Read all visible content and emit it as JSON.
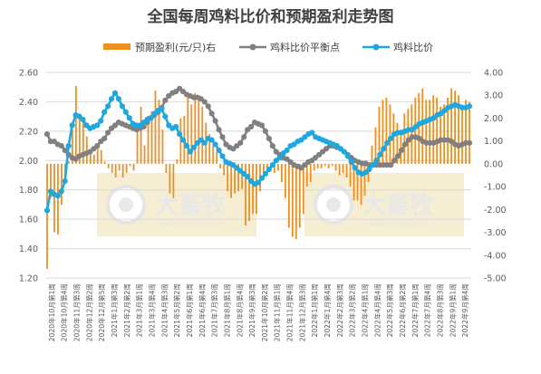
{
  "chart_data": {
    "type": "bar+line",
    "title": "全国每周鸡料比价和预期盈利走势图",
    "legend": {
      "placement": "top",
      "items": [
        "预期盈利(元/只)右",
        "鸡料比价平衡点",
        "鸡料比价"
      ]
    },
    "y_left": {
      "min": 1.2,
      "max": 2.6,
      "step": 0.2,
      "tick_labels": [
        "1.20",
        "1.40",
        "1.60",
        "1.80",
        "2.00",
        "2.20",
        "2.40",
        "2.60"
      ]
    },
    "y_right": {
      "min": -5,
      "max": 4,
      "step": 1,
      "tick_labels": [
        "-5.00",
        "-4.00",
        "-3.00",
        "-2.00",
        "-1.00",
        "0.00",
        "1.00",
        "2.00",
        "3.00",
        "4.00"
      ]
    },
    "x_tick_labels": [
      "2020年10月第1周",
      "2020年10月第4周",
      "2020年11月第3周",
      "2020年12月第2周",
      "2020年12月第5周",
      "2021年1月第3周",
      "2021年2月第2周",
      "2021年3月第1周",
      "2021年3月第4周",
      "2021年4月第3周",
      "2021年5月第2周",
      "2021年6月第1周",
      "2021年6月第4周",
      "2021年7月第3周",
      "2021年8月第1周",
      "2021年8月第4周",
      "2021年9月第3周",
      "2021年10月第2周",
      "2021年11月第1周",
      "2021年11月第4周",
      "2021年12月第3周",
      "2022年1月第1周",
      "2022年1月第4周",
      "2022年2月第3周",
      "2022年3月第2周",
      "2022年4月第1周",
      "2022年4月第4周",
      "2022年5月第3周",
      "2022年6月第2周",
      "2022年7月第1周",
      "2022年7月第4周",
      "2022年8月第3周",
      "2022年9月第1周",
      "2022年9月第4周"
    ],
    "series": [
      {
        "name": "预期盈利(元/只)右",
        "kind": "bar",
        "axis": "right",
        "color": "#ED8F21",
        "values": [
          -4.6,
          -1.5,
          -3.0,
          -3.1,
          -1.8,
          -0.8,
          0.1,
          1.5,
          3.4,
          2.2,
          2.0,
          1.2,
          0.5,
          0.4,
          0.9,
          0.6,
          0.1,
          -0.2,
          -0.4,
          -0.6,
          -0.3,
          -0.6,
          -0.4,
          -0.1,
          -0.3,
          1.5,
          2.5,
          0.8,
          2.1,
          2.3,
          3.2,
          2.8,
          1.5,
          -0.4,
          -1.3,
          -1.5,
          0.2,
          2.0,
          2.1,
          3.0,
          2.6,
          3.1,
          3.0,
          2.5,
          1.8,
          1.3,
          0.8,
          0.5,
          -0.2,
          -0.5,
          -1.2,
          -1.5,
          -1.3,
          -1.2,
          -1.1,
          -2.7,
          -2.5,
          -2.2,
          -2.2,
          -1.2,
          -0.6,
          -0.3,
          -0.2,
          -0.4,
          -0.3,
          -0.8,
          -1.5,
          -2.8,
          -3.2,
          -3.3,
          -2.8,
          -2.2,
          -1.0,
          -0.8,
          -0.3,
          -0.2,
          -0.2,
          -0.1,
          -0.2,
          -0.1,
          -0.3,
          -0.5,
          -0.4,
          -0.6,
          -1.0,
          -1.6,
          -1.6,
          -1.8,
          -1.4,
          -0.8,
          0.8,
          1.6,
          2.5,
          2.8,
          2.9,
          2.6,
          2.2,
          1.8,
          1.5,
          2.2,
          2.4,
          2.6,
          2.9,
          3.1,
          3.3,
          2.8,
          2.8,
          3.0,
          2.9,
          2.5,
          2.6,
          2.9,
          3.3,
          3.2,
          3.0,
          2.6,
          2.8,
          2.7
        ]
      },
      {
        "name": "鸡料比价平衡点",
        "kind": "line",
        "axis": "left",
        "color": "#808080",
        "values": [
          2.18,
          2.13,
          2.13,
          2.11,
          2.1,
          2.07,
          2.04,
          2.02,
          2.01,
          2.03,
          2.04,
          2.05,
          2.06,
          2.08,
          2.1,
          2.13,
          2.15,
          2.19,
          2.22,
          2.24,
          2.26,
          2.25,
          2.24,
          2.23,
          2.22,
          2.21,
          2.22,
          2.23,
          2.26,
          2.29,
          2.31,
          2.33,
          2.36,
          2.41,
          2.44,
          2.46,
          2.47,
          2.49,
          2.47,
          2.45,
          2.44,
          2.43,
          2.43,
          2.42,
          2.4,
          2.37,
          2.32,
          2.27,
          2.21,
          2.16,
          2.11,
          2.09,
          2.08,
          2.1,
          2.12,
          2.16,
          2.21,
          2.23,
          2.26,
          2.25,
          2.24,
          2.2,
          2.15,
          2.1,
          2.06,
          2.04,
          2.02,
          2.01,
          1.99,
          1.97,
          1.96,
          1.95,
          1.97,
          1.99,
          2.0,
          2.02,
          2.04,
          2.06,
          2.08,
          2.1,
          2.1,
          2.09,
          2.08,
          2.06,
          2.04,
          2.02,
          2.0,
          1.99,
          1.98,
          1.98,
          1.97,
          1.97,
          1.97,
          1.97,
          1.97,
          1.97,
          1.97,
          2.0,
          2.03,
          2.07,
          2.11,
          2.14,
          2.16,
          2.16,
          2.15,
          2.13,
          2.12,
          2.12,
          2.12,
          2.13,
          2.14,
          2.14,
          2.14,
          2.13,
          2.11,
          2.1,
          2.11,
          2.12,
          2.12
        ]
      },
      {
        "name": "鸡料比价",
        "kind": "line",
        "axis": "left",
        "color": "#1FA8DE",
        "values": [
          1.66,
          1.79,
          1.77,
          1.76,
          1.79,
          1.86,
          2.1,
          2.24,
          2.31,
          2.3,
          2.28,
          2.24,
          2.22,
          2.23,
          2.24,
          2.27,
          2.33,
          2.37,
          2.42,
          2.46,
          2.42,
          2.37,
          2.33,
          2.29,
          2.25,
          2.24,
          2.24,
          2.26,
          2.28,
          2.29,
          2.32,
          2.34,
          2.35,
          2.3,
          2.24,
          2.22,
          2.23,
          2.18,
          2.14,
          2.1,
          2.06,
          2.09,
          2.12,
          2.14,
          2.12,
          2.15,
          2.14,
          2.11,
          2.07,
          2.03,
          1.99,
          1.98,
          1.97,
          1.95,
          1.93,
          1.91,
          1.89,
          1.86,
          1.84,
          1.85,
          1.88,
          1.91,
          1.94,
          1.97,
          2.0,
          2.02,
          2.05,
          2.07,
          2.1,
          2.11,
          2.13,
          2.14,
          2.16,
          2.18,
          2.19,
          2.16,
          2.15,
          2.14,
          2.13,
          2.12,
          2.11,
          2.1,
          2.08,
          2.06,
          2.03,
          1.99,
          1.95,
          1.92,
          1.91,
          1.92,
          1.94,
          1.97,
          2.0,
          2.04,
          2.08,
          2.12,
          2.15,
          2.18,
          2.19,
          2.19,
          2.2,
          2.21,
          2.21,
          2.23,
          2.25,
          2.26,
          2.27,
          2.28,
          2.29,
          2.31,
          2.32,
          2.34,
          2.36,
          2.37,
          2.38,
          2.37,
          2.36,
          2.36,
          2.37
        ]
      }
    ]
  },
  "watermark": {
    "brand": "大畜牧",
    "site": "www.dxumu.com"
  }
}
